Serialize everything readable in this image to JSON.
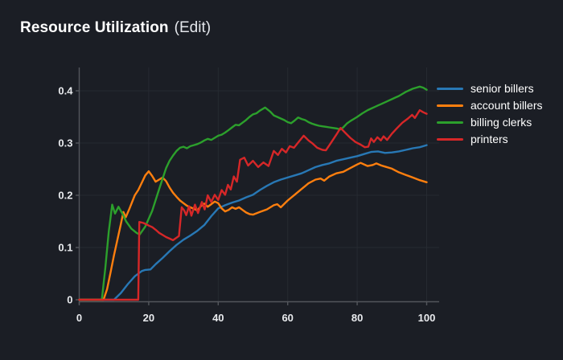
{
  "header": {
    "title": "Resource Utilization",
    "edit": "(Edit)"
  },
  "colors": {
    "background": "#1b1e25",
    "grid": "#262a31",
    "axis": "#53565c",
    "tick_text": "#e9ebee",
    "title_text": "#ffffff"
  },
  "chart_data": {
    "type": "line",
    "title": "Resource Utilization",
    "xlabel": "",
    "ylabel": "",
    "grid": true,
    "legend_position": "right",
    "x_axis": {
      "min": 0,
      "max": 100,
      "tick_values": [
        0,
        20,
        40,
        60,
        80,
        100
      ],
      "tick_labels": [
        "0",
        "20",
        "40",
        "60",
        "80",
        "100"
      ]
    },
    "y_axis": {
      "min": 0,
      "max": 0.4,
      "tick_values": [
        0,
        0.1,
        0.2,
        0.3,
        0.4
      ],
      "tick_labels": [
        "0",
        "0.1",
        "0.2",
        "0.3",
        "0.4"
      ]
    },
    "series": [
      {
        "name": "senior billers",
        "color": "#2878b5",
        "points": [
          [
            0,
            0
          ],
          [
            10,
            0
          ],
          [
            12,
            0.013
          ],
          [
            14,
            0.03
          ],
          [
            16,
            0.045
          ],
          [
            18,
            0.055
          ],
          [
            19,
            0.057
          ],
          [
            20.5,
            0.058
          ],
          [
            22,
            0.068
          ],
          [
            24,
            0.08
          ],
          [
            26,
            0.093
          ],
          [
            28,
            0.105
          ],
          [
            30,
            0.115
          ],
          [
            32,
            0.123
          ],
          [
            34,
            0.132
          ],
          [
            36,
            0.143
          ],
          [
            38,
            0.16
          ],
          [
            40,
            0.175
          ],
          [
            42,
            0.181
          ],
          [
            44,
            0.186
          ],
          [
            46,
            0.19
          ],
          [
            48,
            0.196
          ],
          [
            50,
            0.201
          ],
          [
            52,
            0.21
          ],
          [
            54,
            0.218
          ],
          [
            56,
            0.225
          ],
          [
            58,
            0.23
          ],
          [
            60,
            0.234
          ],
          [
            62,
            0.238
          ],
          [
            64,
            0.242
          ],
          [
            66,
            0.248
          ],
          [
            68,
            0.254
          ],
          [
            70,
            0.258
          ],
          [
            72,
            0.261
          ],
          [
            74,
            0.266
          ],
          [
            76,
            0.269
          ],
          [
            78,
            0.272
          ],
          [
            80,
            0.275
          ],
          [
            82,
            0.279
          ],
          [
            84,
            0.283
          ],
          [
            86,
            0.284
          ],
          [
            88,
            0.281
          ],
          [
            90,
            0.282
          ],
          [
            92,
            0.284
          ],
          [
            94,
            0.287
          ],
          [
            96,
            0.29
          ],
          [
            98,
            0.292
          ],
          [
            100,
            0.296
          ]
        ]
      },
      {
        "name": "account billers",
        "color": "#ff7f0e",
        "points": [
          [
            0,
            0
          ],
          [
            7,
            0
          ],
          [
            8,
            0.02
          ],
          [
            9,
            0.052
          ],
          [
            10,
            0.085
          ],
          [
            11,
            0.115
          ],
          [
            12,
            0.145
          ],
          [
            12.7,
            0.168
          ],
          [
            13.4,
            0.158
          ],
          [
            14.5,
            0.175
          ],
          [
            16,
            0.2
          ],
          [
            17,
            0.21
          ],
          [
            18,
            0.224
          ],
          [
            19,
            0.238
          ],
          [
            20,
            0.246
          ],
          [
            21,
            0.237
          ],
          [
            22,
            0.226
          ],
          [
            23,
            0.23
          ],
          [
            24,
            0.234
          ],
          [
            25,
            0.227
          ],
          [
            26,
            0.215
          ],
          [
            27,
            0.205
          ],
          [
            28,
            0.197
          ],
          [
            29,
            0.19
          ],
          [
            30,
            0.185
          ],
          [
            31,
            0.18
          ],
          [
            32,
            0.177
          ],
          [
            33,
            0.174
          ],
          [
            34,
            0.171
          ],
          [
            35,
            0.179
          ],
          [
            36,
            0.184
          ],
          [
            37,
            0.178
          ],
          [
            38,
            0.183
          ],
          [
            39,
            0.188
          ],
          [
            40,
            0.185
          ],
          [
            41,
            0.175
          ],
          [
            42,
            0.169
          ],
          [
            43,
            0.172
          ],
          [
            44,
            0.177
          ],
          [
            45,
            0.174
          ],
          [
            46,
            0.177
          ],
          [
            47,
            0.172
          ],
          [
            48,
            0.167
          ],
          [
            49,
            0.164
          ],
          [
            50,
            0.163
          ],
          [
            52,
            0.168
          ],
          [
            54,
            0.173
          ],
          [
            56,
            0.181
          ],
          [
            57,
            0.183
          ],
          [
            58,
            0.177
          ],
          [
            60,
            0.19
          ],
          [
            62,
            0.201
          ],
          [
            64,
            0.212
          ],
          [
            66,
            0.223
          ],
          [
            68,
            0.23
          ],
          [
            69.5,
            0.232
          ],
          [
            70.5,
            0.228
          ],
          [
            72,
            0.236
          ],
          [
            74,
            0.242
          ],
          [
            76,
            0.245
          ],
          [
            78,
            0.252
          ],
          [
            80,
            0.259
          ],
          [
            81,
            0.262
          ],
          [
            83,
            0.256
          ],
          [
            84.5,
            0.258
          ],
          [
            85.5,
            0.261
          ],
          [
            87,
            0.257
          ],
          [
            88,
            0.255
          ],
          [
            90,
            0.251
          ],
          [
            92,
            0.244
          ],
          [
            94,
            0.239
          ],
          [
            96,
            0.234
          ],
          [
            98,
            0.229
          ],
          [
            100,
            0.225
          ]
        ]
      },
      {
        "name": "billing clerks",
        "color": "#2ca02c",
        "points": [
          [
            0,
            0
          ],
          [
            6.5,
            0
          ],
          [
            7.5,
            0.06
          ],
          [
            8.5,
            0.13
          ],
          [
            9.5,
            0.182
          ],
          [
            10.3,
            0.165
          ],
          [
            11.3,
            0.178
          ],
          [
            12.5,
            0.164
          ],
          [
            13.5,
            0.15
          ],
          [
            15,
            0.136
          ],
          [
            16.5,
            0.128
          ],
          [
            17.4,
            0.125
          ],
          [
            19,
            0.14
          ],
          [
            21,
            0.17
          ],
          [
            23,
            0.212
          ],
          [
            25,
            0.252
          ],
          [
            26,
            0.266
          ],
          [
            27,
            0.276
          ],
          [
            28,
            0.285
          ],
          [
            29,
            0.291
          ],
          [
            30,
            0.293
          ],
          [
            31,
            0.29
          ],
          [
            32,
            0.294
          ],
          [
            33,
            0.296
          ],
          [
            34,
            0.298
          ],
          [
            35,
            0.301
          ],
          [
            36,
            0.305
          ],
          [
            37,
            0.308
          ],
          [
            38,
            0.306
          ],
          [
            39,
            0.31
          ],
          [
            40,
            0.314
          ],
          [
            41,
            0.316
          ],
          [
            42,
            0.32
          ],
          [
            43,
            0.325
          ],
          [
            44,
            0.33
          ],
          [
            45,
            0.335
          ],
          [
            46,
            0.334
          ],
          [
            47,
            0.339
          ],
          [
            48,
            0.344
          ],
          [
            49,
            0.35
          ],
          [
            50,
            0.355
          ],
          [
            51,
            0.357
          ],
          [
            52,
            0.362
          ],
          [
            53.5,
            0.368
          ],
          [
            55,
            0.36
          ],
          [
            56,
            0.353
          ],
          [
            57,
            0.35
          ],
          [
            58,
            0.347
          ],
          [
            59,
            0.344
          ],
          [
            60,
            0.34
          ],
          [
            61,
            0.338
          ],
          [
            62,
            0.343
          ],
          [
            63,
            0.349
          ],
          [
            64,
            0.346
          ],
          [
            65,
            0.344
          ],
          [
            66,
            0.34
          ],
          [
            67,
            0.337
          ],
          [
            68,
            0.335
          ],
          [
            69,
            0.333
          ],
          [
            70,
            0.332
          ],
          [
            71,
            0.331
          ],
          [
            72,
            0.33
          ],
          [
            73,
            0.329
          ],
          [
            74,
            0.328
          ],
          [
            75.2,
            0.326
          ],
          [
            76,
            0.33
          ],
          [
            77,
            0.337
          ],
          [
            78,
            0.342
          ],
          [
            79,
            0.346
          ],
          [
            80,
            0.35
          ],
          [
            81.5,
            0.357
          ],
          [
            83,
            0.363
          ],
          [
            84,
            0.366
          ],
          [
            85,
            0.369
          ],
          [
            86,
            0.372
          ],
          [
            87,
            0.375
          ],
          [
            88,
            0.378
          ],
          [
            89,
            0.381
          ],
          [
            90,
            0.384
          ],
          [
            91,
            0.387
          ],
          [
            92,
            0.39
          ],
          [
            93,
            0.394
          ],
          [
            94,
            0.398
          ],
          [
            95,
            0.401
          ],
          [
            96,
            0.404
          ],
          [
            97,
            0.406
          ],
          [
            98,
            0.408
          ],
          [
            99,
            0.406
          ],
          [
            100,
            0.402
          ]
        ]
      },
      {
        "name": "printers",
        "color": "#d62728",
        "points": [
          [
            0,
            0
          ],
          [
            17,
            0
          ],
          [
            17.3,
            0.149
          ],
          [
            18.5,
            0.147
          ],
          [
            20,
            0.142
          ],
          [
            21,
            0.139
          ],
          [
            22,
            0.134
          ],
          [
            23,
            0.128
          ],
          [
            24,
            0.124
          ],
          [
            25,
            0.12
          ],
          [
            26,
            0.117
          ],
          [
            27,
            0.114
          ],
          [
            28.7,
            0.122
          ],
          [
            29.5,
            0.177
          ],
          [
            30.2,
            0.171
          ],
          [
            30.8,
            0.162
          ],
          [
            31.6,
            0.179
          ],
          [
            32.3,
            0.161
          ],
          [
            33.3,
            0.182
          ],
          [
            34.2,
            0.166
          ],
          [
            35.3,
            0.187
          ],
          [
            36.1,
            0.173
          ],
          [
            37,
            0.2
          ],
          [
            38,
            0.187
          ],
          [
            39,
            0.201
          ],
          [
            40,
            0.191
          ],
          [
            41,
            0.21
          ],
          [
            42,
            0.201
          ],
          [
            42.8,
            0.22
          ],
          [
            43.6,
            0.211
          ],
          [
            44.5,
            0.236
          ],
          [
            45.4,
            0.226
          ],
          [
            46.3,
            0.268
          ],
          [
            47.5,
            0.272
          ],
          [
            48.6,
            0.257
          ],
          [
            50,
            0.266
          ],
          [
            51.5,
            0.254
          ],
          [
            53,
            0.263
          ],
          [
            54.5,
            0.256
          ],
          [
            56,
            0.285
          ],
          [
            57.2,
            0.277
          ],
          [
            58.3,
            0.289
          ],
          [
            59.5,
            0.282
          ],
          [
            60.6,
            0.294
          ],
          [
            61.8,
            0.291
          ],
          [
            63,
            0.301
          ],
          [
            64.6,
            0.314
          ],
          [
            66,
            0.305
          ],
          [
            67.2,
            0.299
          ],
          [
            68.5,
            0.291
          ],
          [
            70,
            0.287
          ],
          [
            71,
            0.286
          ],
          [
            72.5,
            0.301
          ],
          [
            74,
            0.316
          ],
          [
            75.2,
            0.329
          ],
          [
            76.5,
            0.32
          ],
          [
            78,
            0.31
          ],
          [
            79.5,
            0.302
          ],
          [
            81,
            0.297
          ],
          [
            82.2,
            0.292
          ],
          [
            83.2,
            0.293
          ],
          [
            84,
            0.309
          ],
          [
            84.8,
            0.302
          ],
          [
            85.8,
            0.311
          ],
          [
            86.8,
            0.305
          ],
          [
            87.6,
            0.313
          ],
          [
            88.6,
            0.306
          ],
          [
            90,
            0.318
          ],
          [
            91.4,
            0.328
          ],
          [
            93,
            0.339
          ],
          [
            94.6,
            0.347
          ],
          [
            95.8,
            0.354
          ],
          [
            96.6,
            0.348
          ],
          [
            98,
            0.363
          ],
          [
            99,
            0.359
          ],
          [
            100,
            0.356
          ]
        ]
      }
    ]
  }
}
